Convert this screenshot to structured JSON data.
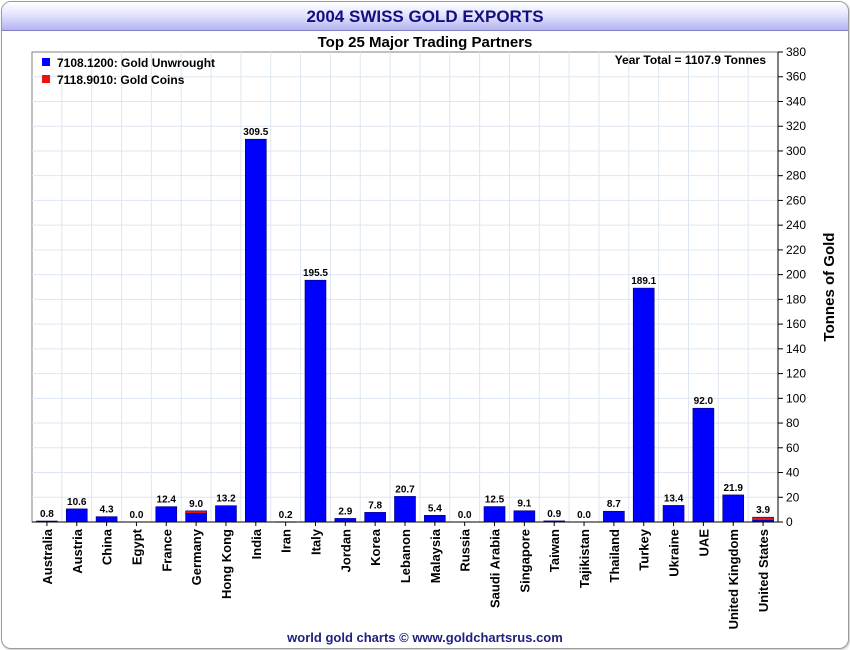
{
  "page": {
    "title": "2004 SWISS GOLD EXPORTS",
    "subtitle": "Top 25 Major Trading Partners",
    "annotation": "Year Total = 1107.9 Tonnes",
    "footer": "world gold charts © www.goldchartsrus.com"
  },
  "chart_data": {
    "type": "bar",
    "stacked": true,
    "title": "2004 SWISS GOLD EXPORTS",
    "subtitle": "Top 25 Major Trading Partners",
    "xlabel": "",
    "ylabel": "Tonnes of Gold",
    "y_axis_side": "right",
    "ylim": [
      0,
      380
    ],
    "ytick_step": 20,
    "grid": true,
    "legend_position": "top-left",
    "annotation": "Year Total = 1107.9 Tonnes",
    "categories": [
      "Australia",
      "Austria",
      "China",
      "Egypt",
      "France",
      "Germany",
      "Hong Kong",
      "India",
      "Iran",
      "Italy",
      "Jordan",
      "Korea",
      "Lebanon",
      "Malaysia",
      "Russia",
      "Saudi Arabia",
      "Singapore",
      "Taiwan",
      "Tajikistan",
      "Thailand",
      "Turkey",
      "Ukraine",
      "UAE",
      "United Kingdom",
      "United States"
    ],
    "series": [
      {
        "name": "7108.1200: Gold Unwrought",
        "color": "#0000ff",
        "values": [
          0.8,
          10.6,
          4.3,
          0.0,
          12.4,
          7.0,
          13.2,
          309.5,
          0.2,
          195.5,
          2.9,
          7.8,
          20.7,
          5.4,
          0.0,
          12.5,
          9.1,
          0.9,
          0.0,
          8.7,
          189.1,
          13.4,
          92.0,
          21.9,
          1.4
        ]
      },
      {
        "name": "7118.9010: Gold Coins",
        "color": "#ee1111",
        "values": [
          0,
          0,
          0,
          0,
          0,
          2.0,
          0,
          0,
          0,
          0,
          0,
          0,
          0,
          0,
          0,
          0,
          0,
          0,
          0,
          0,
          0,
          0,
          0,
          0,
          2.5
        ]
      }
    ],
    "totals": [
      "0.8",
      "10.6",
      "4.3",
      "0.0",
      "12.4",
      "9.0",
      "13.2",
      "309.5",
      "0.2",
      "195.5",
      "2.9",
      "7.8",
      "20.7",
      "5.4",
      "0.0",
      "12.5",
      "9.1",
      "0.9",
      "0.0",
      "8.7",
      "189.1",
      "13.4",
      "92.0",
      "21.9",
      "3.9"
    ]
  }
}
